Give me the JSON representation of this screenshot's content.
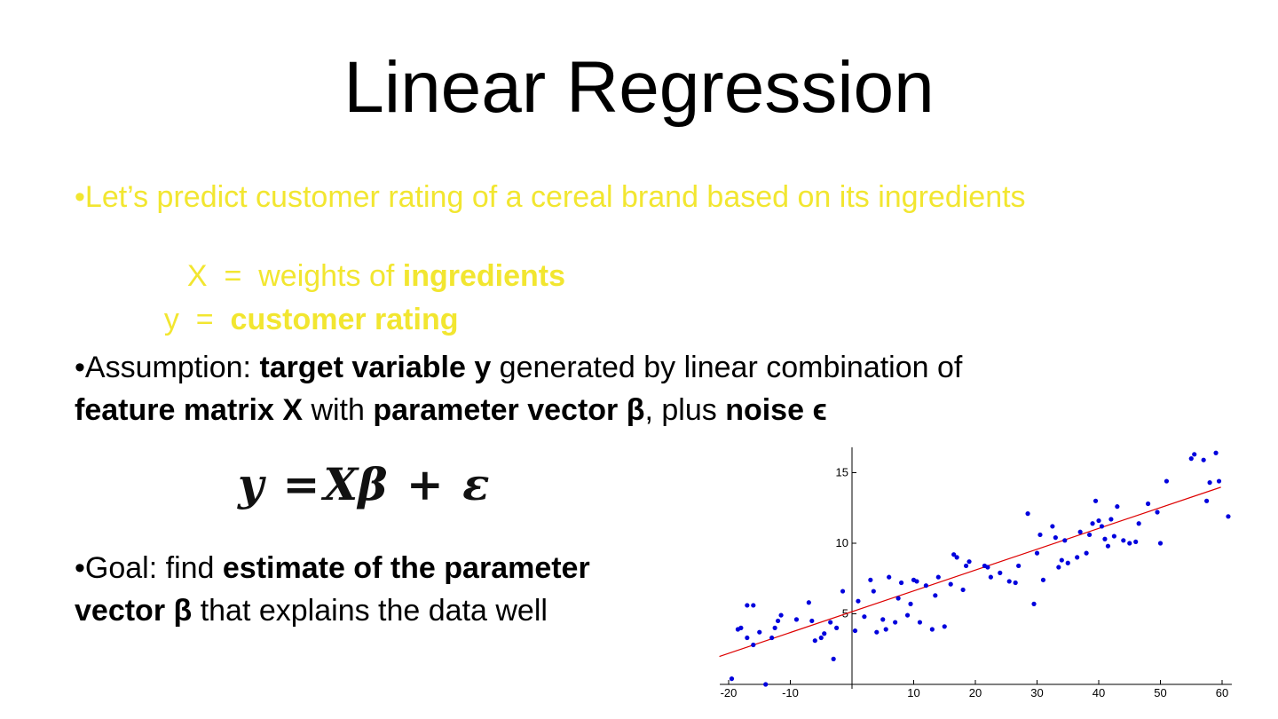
{
  "title": "Linear Regression",
  "bullet": "•",
  "example": {
    "text": "Let’s predict customer rating of a cereal brand based on its ingredients",
    "x_prefix": "X  =  weights of ",
    "x_bold": "ingredients",
    "y_prefix": "y  =  ",
    "y_bold": "customer rating"
  },
  "assumption": {
    "p1": "Assumption: ",
    "p2": "target variable y",
    "p3": " generated by linear combination of",
    "p4": "feature matrix X",
    "p5": " with ",
    "p6": "parameter vector β",
    "p7": ", plus ",
    "p8": "noise ϵ"
  },
  "formula": {
    "y": "y",
    "eq": "=",
    "x": "X",
    "beta": "β",
    "plus": "+",
    "eps": "ε"
  },
  "goal": {
    "p1": "Goal: find ",
    "p2": "estimate of the parameter",
    "p3": "vector β",
    "p4": " that explains the data well"
  },
  "colors": {
    "highlight": "#f2e630",
    "points": "#0000dd",
    "fit_line": "#dd0000"
  },
  "chart_data": {
    "type": "scatter",
    "title": "",
    "xlabel": "",
    "ylabel": "",
    "xlim": [
      -21,
      61
    ],
    "ylim": [
      0,
      16.8
    ],
    "grid": false,
    "legend": "none",
    "x_ticks": [
      -20,
      -10,
      10,
      20,
      30,
      40,
      50,
      60
    ],
    "y_ticks": [
      5,
      10,
      15
    ],
    "fit_line": {
      "x": [
        -20,
        60
      ],
      "y": [
        2.2,
        14.0
      ]
    },
    "points": [
      [
        -19.5,
        0.4
      ],
      [
        -18.5,
        3.9
      ],
      [
        -18,
        4.0
      ],
      [
        -17,
        5.6
      ],
      [
        -16,
        5.6
      ],
      [
        -17,
        3.3
      ],
      [
        -16,
        2.8
      ],
      [
        -15,
        3.7
      ],
      [
        -14,
        0.0
      ],
      [
        -13,
        3.3
      ],
      [
        -12.5,
        4.0
      ],
      [
        -12,
        4.5
      ],
      [
        -11.5,
        4.9
      ],
      [
        -9,
        4.6
      ],
      [
        -7,
        5.8
      ],
      [
        -6.5,
        4.5
      ],
      [
        -6,
        3.1
      ],
      [
        -5,
        3.3
      ],
      [
        -4.5,
        3.6
      ],
      [
        -3.5,
        4.4
      ],
      [
        -3,
        1.8
      ],
      [
        -2.5,
        4.0
      ],
      [
        -1.5,
        6.6
      ],
      [
        0.5,
        3.8
      ],
      [
        1,
        5.9
      ],
      [
        2,
        4.8
      ],
      [
        3,
        7.4
      ],
      [
        3.5,
        6.6
      ],
      [
        4,
        3.7
      ],
      [
        5,
        4.6
      ],
      [
        5.5,
        3.9
      ],
      [
        6,
        7.6
      ],
      [
        7,
        4.4
      ],
      [
        7.5,
        6.1
      ],
      [
        8,
        7.2
      ],
      [
        9,
        4.9
      ],
      [
        9.5,
        5.7
      ],
      [
        10,
        7.4
      ],
      [
        10.5,
        7.3
      ],
      [
        11,
        4.4
      ],
      [
        12,
        7.0
      ],
      [
        13,
        3.9
      ],
      [
        13.5,
        6.3
      ],
      [
        14,
        7.6
      ],
      [
        15,
        4.1
      ],
      [
        16,
        7.1
      ],
      [
        16.5,
        9.2
      ],
      [
        17,
        9.0
      ],
      [
        18,
        6.7
      ],
      [
        18.5,
        8.4
      ],
      [
        19,
        8.7
      ],
      [
        21.5,
        8.4
      ],
      [
        22,
        8.3
      ],
      [
        22.5,
        7.6
      ],
      [
        24,
        7.9
      ],
      [
        25.5,
        7.3
      ],
      [
        26.5,
        7.2
      ],
      [
        27,
        8.4
      ],
      [
        28.5,
        12.1
      ],
      [
        29.5,
        5.7
      ],
      [
        30,
        9.3
      ],
      [
        30.5,
        10.6
      ],
      [
        31,
        7.4
      ],
      [
        32.5,
        11.2
      ],
      [
        33,
        10.4
      ],
      [
        33.5,
        8.3
      ],
      [
        34,
        8.8
      ],
      [
        34.5,
        10.2
      ],
      [
        35,
        8.6
      ],
      [
        36.5,
        9.0
      ],
      [
        37,
        10.8
      ],
      [
        38,
        9.3
      ],
      [
        38.5,
        10.6
      ],
      [
        39,
        11.4
      ],
      [
        39.5,
        13.0
      ],
      [
        40,
        11.6
      ],
      [
        40.5,
        11.2
      ],
      [
        41,
        10.3
      ],
      [
        41.5,
        9.8
      ],
      [
        42,
        11.7
      ],
      [
        42.5,
        10.5
      ],
      [
        43,
        12.6
      ],
      [
        44,
        10.2
      ],
      [
        45,
        10.0
      ],
      [
        46,
        10.1
      ],
      [
        46.5,
        11.4
      ],
      [
        48,
        12.8
      ],
      [
        49.5,
        12.2
      ],
      [
        50,
        10.0
      ],
      [
        51,
        14.4
      ],
      [
        55,
        16.0
      ],
      [
        55.5,
        16.3
      ],
      [
        57,
        15.9
      ],
      [
        57.5,
        13.0
      ],
      [
        58,
        14.3
      ],
      [
        59,
        16.4
      ],
      [
        59.5,
        14.4
      ],
      [
        61,
        11.9
      ]
    ]
  }
}
